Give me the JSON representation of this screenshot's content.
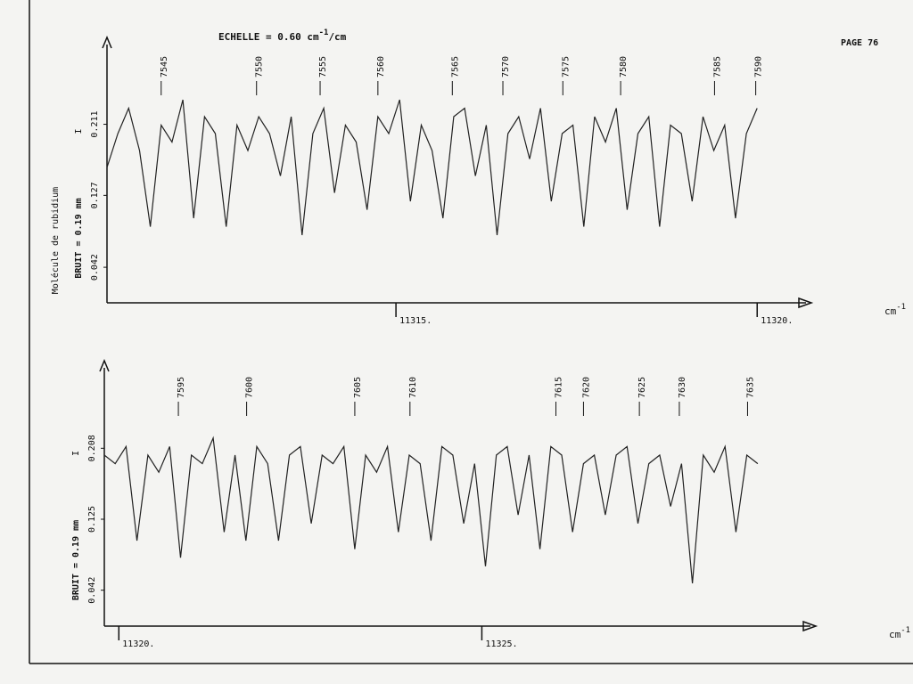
{
  "header": {
    "scale_prefix": "ECHELLE = 0.60 cm",
    "scale_exp": "-1",
    "scale_suffix": "/cm",
    "page": "PAGE 76",
    "subject": "Molécule de rubidium"
  },
  "chart_data": [
    {
      "type": "line",
      "ylabel": "BRUIT = 0.19 mm",
      "intensity_label": "I",
      "xlabel_base": "cm",
      "xlabel_sup": "-1",
      "xlim": [
        11311,
        11320.75
      ],
      "ylim": [
        0,
        0.3
      ],
      "xticks": [
        {
          "value": 11315,
          "label": "11315."
        },
        {
          "value": 11320,
          "label": "11320."
        }
      ],
      "yticks": [
        0.042,
        0.127,
        0.211
      ],
      "line_ids": {
        "x": [
          11311.75,
          11313.07,
          11313.95,
          11314.75,
          11315.78,
          11316.48,
          11317.31,
          11318.11,
          11319.41,
          11319.98
        ],
        "labels": [
          7545,
          7550,
          7555,
          7560,
          7565,
          7570,
          7575,
          7580,
          7585,
          7590
        ]
      },
      "color": "#222222",
      "x": [
        11311,
        11311.15,
        11311.3,
        11311.45,
        11311.6,
        11311.75,
        11311.9,
        11312.05,
        11312.2,
        11312.35,
        11312.5,
        11312.65,
        11312.8,
        11312.95,
        11313.1,
        11313.25,
        11313.4,
        11313.55,
        11313.7,
        11313.85,
        11314,
        11314.15,
        11314.3,
        11314.45,
        11314.6,
        11314.75,
        11314.9,
        11315.05,
        11315.2,
        11315.35,
        11315.5,
        11315.65,
        11315.8,
        11315.95,
        11316.1,
        11316.25,
        11316.4,
        11316.55,
        11316.7,
        11316.85,
        11317,
        11317.15,
        11317.3,
        11317.45,
        11317.6,
        11317.75,
        11317.9,
        11318.05,
        11318.2,
        11318.35,
        11318.5,
        11318.65,
        11318.8,
        11318.95,
        11319.1,
        11319.25,
        11319.4,
        11319.55,
        11319.7,
        11319.85,
        11320
      ],
      "values": [
        0.16,
        0.2,
        0.23,
        0.18,
        0.09,
        0.21,
        0.19,
        0.24,
        0.1,
        0.22,
        0.2,
        0.09,
        0.21,
        0.18,
        0.22,
        0.2,
        0.15,
        0.22,
        0.08,
        0.2,
        0.23,
        0.13,
        0.21,
        0.19,
        0.11,
        0.22,
        0.2,
        0.24,
        0.12,
        0.21,
        0.18,
        0.1,
        0.22,
        0.23,
        0.15,
        0.21,
        0.08,
        0.2,
        0.22,
        0.17,
        0.23,
        0.12,
        0.2,
        0.21,
        0.09,
        0.22,
        0.19,
        0.23,
        0.11,
        0.2,
        0.22,
        0.09,
        0.21,
        0.2,
        0.12,
        0.22,
        0.18,
        0.21,
        0.1,
        0.2,
        0.23
      ]
    },
    {
      "type": "line",
      "ylabel": "BRUIT = 0.19 mm",
      "intensity_label": "I",
      "xlabel_base": "cm",
      "xlabel_sup": "-1",
      "xlim": [
        11319.8,
        11329.6
      ],
      "ylim": [
        0,
        0.3
      ],
      "xticks": [
        {
          "value": 11320,
          "label": "11320."
        },
        {
          "value": 11325,
          "label": "11325."
        }
      ],
      "yticks": [
        0.042,
        0.125,
        0.208
      ],
      "line_ids": {
        "x": [
          11320.82,
          11321.76,
          11323.25,
          11324.01,
          11326.02,
          11326.4,
          11327.17,
          11327.72,
          11328.66
        ],
        "labels": [
          7595,
          7600,
          7605,
          7610,
          7615,
          7620,
          7625,
          7630,
          7635
        ]
      },
      "color": "#222222",
      "x": [
        11319.8,
        11319.95,
        11320.1,
        11320.25,
        11320.4,
        11320.55,
        11320.7,
        11320.85,
        11321,
        11321.15,
        11321.3,
        11321.45,
        11321.6,
        11321.75,
        11321.9,
        11322.05,
        11322.2,
        11322.35,
        11322.5,
        11322.65,
        11322.8,
        11322.95,
        11323.1,
        11323.25,
        11323.4,
        11323.55,
        11323.7,
        11323.85,
        11324,
        11324.15,
        11324.3,
        11324.45,
        11324.6,
        11324.75,
        11324.9,
        11325.05,
        11325.2,
        11325.35,
        11325.5,
        11325.65,
        11325.8,
        11325.95,
        11326.1,
        11326.25,
        11326.4,
        11326.55,
        11326.7,
        11326.85,
        11327,
        11327.15,
        11327.3,
        11327.45,
        11327.6,
        11327.75,
        11327.9,
        11328.05,
        11328.2,
        11328.35,
        11328.5,
        11328.65,
        11328.8
      ],
      "values": [
        0.2,
        0.19,
        0.21,
        0.1,
        0.2,
        0.18,
        0.21,
        0.08,
        0.2,
        0.19,
        0.22,
        0.11,
        0.2,
        0.1,
        0.21,
        0.19,
        0.1,
        0.2,
        0.21,
        0.12,
        0.2,
        0.19,
        0.21,
        0.09,
        0.2,
        0.18,
        0.21,
        0.11,
        0.2,
        0.19,
        0.1,
        0.21,
        0.2,
        0.12,
        0.19,
        0.07,
        0.2,
        0.21,
        0.13,
        0.2,
        0.09,
        0.21,
        0.2,
        0.11,
        0.19,
        0.2,
        0.13,
        0.2,
        0.21,
        0.12,
        0.19,
        0.2,
        0.14,
        0.19,
        0.05,
        0.2,
        0.18,
        0.21,
        0.11,
        0.2,
        0.19
      ]
    }
  ]
}
